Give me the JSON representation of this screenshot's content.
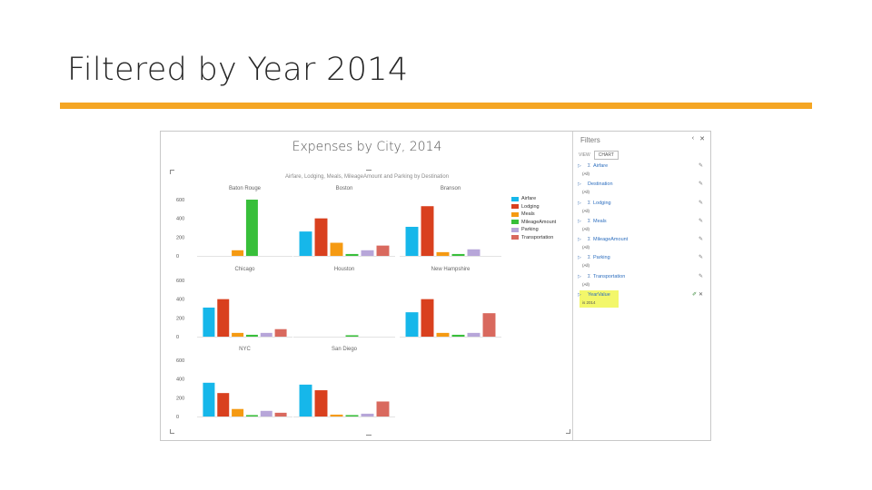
{
  "slide": {
    "title": "Filtered by Year 2014"
  },
  "report": {
    "title": "Expenses by City, 2014",
    "subtitle": "Airfare, Lodging, Meals, MileageAmount and Parking by Destination",
    "y_ticks": [
      "600",
      "400",
      "200",
      "0"
    ]
  },
  "chart_data": {
    "type": "bar",
    "title": "Expenses by City, 2014",
    "subtitle": "Airfare, Lodging, Meals, MileageAmount and Parking by Destination",
    "facet_by": "Destination",
    "series_names": [
      "Airfare",
      "Lodging",
      "Meals",
      "MileageAmount",
      "Parking",
      "Transportation"
    ],
    "colors": [
      "#16B7EA",
      "#D9401E",
      "#F59A12",
      "#38BF3A",
      "#B7A6D9",
      "#D9695E"
    ],
    "ylim": [
      0,
      600
    ],
    "legend_position": "right",
    "panels": [
      {
        "name": "Baton Rouge",
        "values": [
          0,
          0,
          60,
          600,
          0,
          0
        ]
      },
      {
        "name": "Boston",
        "values": [
          260,
          400,
          140,
          20,
          60,
          110
        ]
      },
      {
        "name": "Branson",
        "values": [
          310,
          530,
          40,
          20,
          70,
          0
        ]
      },
      {
        "name": "Chicago",
        "values": [
          310,
          400,
          40,
          20,
          40,
          80
        ]
      },
      {
        "name": "Houston",
        "values": [
          0,
          0,
          0,
          15,
          0,
          0
        ]
      },
      {
        "name": "New Hampshire",
        "values": [
          260,
          400,
          40,
          20,
          40,
          250
        ]
      },
      {
        "name": "NYC",
        "values": [
          360,
          250,
          80,
          15,
          60,
          40
        ]
      },
      {
        "name": "San Diego",
        "values": [
          340,
          280,
          20,
          15,
          30,
          160
        ]
      }
    ]
  },
  "filters": {
    "header": "Filters",
    "controls": [
      "‹",
      "✕"
    ],
    "tabs": [
      "VIEW",
      "CHART"
    ],
    "items": [
      {
        "name": "Airfare",
        "value": "(All)"
      },
      {
        "name": "Destination",
        "value": "(All)"
      },
      {
        "name": "Lodging",
        "value": "(All)"
      },
      {
        "name": "Meals",
        "value": "(All)"
      },
      {
        "name": "MileageAmount",
        "value": "(All)"
      },
      {
        "name": "Parking",
        "value": "(All)"
      },
      {
        "name": "Transportation",
        "value": "(All)"
      }
    ],
    "active": {
      "name": "YearValue",
      "value": "is 2014"
    }
  },
  "icons": {
    "expand": "expand-arrow-icon",
    "sigma": "sigma-icon",
    "edit": "pencil-icon",
    "clear": "eraser-icon",
    "close": "close-icon"
  }
}
